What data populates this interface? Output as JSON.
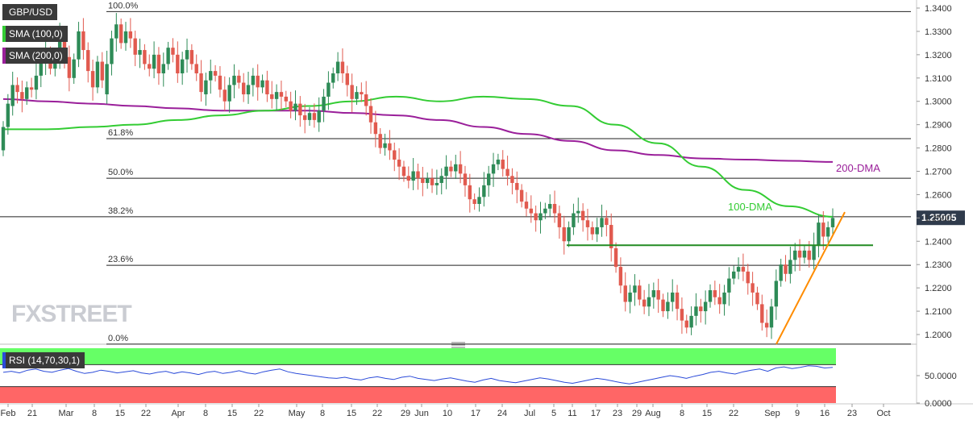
{
  "legend": {
    "symbol": "GBP/USD",
    "sma100": "SMA (100,0)",
    "sma200": "SMA (200,0)",
    "rsi": "RSI (14,70,30,1)"
  },
  "watermark": "FXSTREET",
  "colors": {
    "bull": "#2e8b57",
    "bear": "#e15a4f",
    "sma100": "#33cc33",
    "sma200": "#9a1f9a",
    "trendline": "#ff8c00",
    "support": "#228b22",
    "rsi_line": "#2b4bd9",
    "rsi_overbought_zone": "#66ff66",
    "rsi_oversold_zone": "#ff6666",
    "price_tag": "#2f3b4c"
  },
  "annotations": {
    "dma200": "200-DMA",
    "dma100": "100-DMA"
  },
  "last_price": "1.25005",
  "chart_data": {
    "type": "candlestick",
    "symbol": "GBP/USD",
    "y_ticks": [
      "1.3400",
      "1.3300",
      "1.3200",
      "1.3100",
      "1.3000",
      "1.2900",
      "1.2800",
      "1.2700",
      "1.2600",
      "1.2500",
      "1.2400",
      "1.2300",
      "1.2200",
      "1.2100",
      "1.2000"
    ],
    "ylim": [
      1.1955,
      1.3425
    ],
    "x_ticks": [
      "Feb",
      "21",
      "Mar",
      "8",
      "15",
      "22",
      "Apr",
      "8",
      "15",
      "22",
      "May",
      "8",
      "15",
      "22",
      "29",
      "Jun",
      "10",
      "17",
      "24",
      "Jul",
      "5",
      "11",
      "17",
      "23",
      "29",
      "Aug",
      "8",
      "15",
      "22",
      "Sep",
      "9",
      "16",
      "23",
      "Oct"
    ],
    "fib_levels": [
      {
        "label": "100.0%",
        "value": 1.3385
      },
      {
        "label": "61.8%",
        "value": 1.284
      },
      {
        "label": "50.0%",
        "value": 1.267
      },
      {
        "label": "38.2%",
        "value": 1.2505
      },
      {
        "label": "23.6%",
        "value": 1.2297
      },
      {
        "label": "0.0%",
        "value": 1.1959
      }
    ],
    "support_level": 1.2383,
    "trendline": {
      "from": [
        1.1959,
        "early Sep"
      ],
      "to": [
        1.2525,
        "mid Sep"
      ]
    },
    "sma100": [
      1.288,
      1.288,
      1.289,
      1.29,
      1.292,
      1.294,
      1.296,
      1.298,
      1.3,
      1.302,
      1.3,
      1.302,
      1.301,
      1.298,
      1.29,
      1.282,
      1.272,
      1.262,
      1.255,
      1.2505
    ],
    "sma200": [
      1.301,
      1.3,
      1.299,
      1.298,
      1.297,
      1.296,
      1.296,
      1.296,
      1.295,
      1.294,
      1.292,
      1.289,
      1.286,
      1.283,
      1.279,
      1.277,
      1.2755,
      1.275,
      1.2745,
      1.274
    ],
    "candles": [
      [
        1.279,
        1.289
      ],
      [
        1.289,
        1.299
      ],
      [
        1.298,
        1.307
      ],
      [
        1.307,
        1.304
      ],
      [
        1.304,
        1.301
      ],
      [
        1.301,
        1.306
      ],
      [
        1.306,
        1.305
      ],
      [
        1.305,
        1.311
      ],
      [
        1.311,
        1.317
      ],
      [
        1.317,
        1.321
      ],
      [
        1.321,
        1.314
      ],
      [
        1.314,
        1.318
      ],
      [
        1.318,
        1.328
      ],
      [
        1.327,
        1.319
      ],
      [
        1.319,
        1.31
      ],
      [
        1.31,
        1.318
      ],
      [
        1.318,
        1.33
      ],
      [
        1.33,
        1.322
      ],
      [
        1.322,
        1.313
      ],
      [
        1.313,
        1.306
      ],
      [
        1.306,
        1.317
      ],
      [
        1.317,
        1.309
      ],
      [
        1.303,
        1.316
      ],
      [
        1.316,
        1.327
      ],
      [
        1.327,
        1.333
      ],
      [
        1.333,
        1.325
      ],
      [
        1.325,
        1.33
      ],
      [
        1.33,
        1.327
      ],
      [
        1.327,
        1.32
      ],
      [
        1.32,
        1.322
      ],
      [
        1.322,
        1.316
      ],
      [
        1.316,
        1.314
      ],
      [
        1.314,
        1.32
      ],
      [
        1.32,
        1.312
      ],
      [
        1.312,
        1.316
      ],
      [
        1.316,
        1.323
      ],
      [
        1.323,
        1.32
      ],
      [
        1.32,
        1.312
      ],
      [
        1.312,
        1.318
      ],
      [
        1.318,
        1.322
      ],
      [
        1.322,
        1.316
      ],
      [
        1.316,
        1.312
      ],
      [
        1.312,
        1.304
      ],
      [
        1.303,
        1.309
      ],
      [
        1.309,
        1.313
      ],
      [
        1.313,
        1.311
      ],
      [
        1.311,
        1.305
      ],
      [
        1.305,
        1.3
      ],
      [
        1.3,
        1.307
      ],
      [
        1.307,
        1.311
      ],
      [
        1.311,
        1.308
      ],
      [
        1.308,
        1.303
      ],
      [
        1.303,
        1.307
      ],
      [
        1.307,
        1.311
      ],
      [
        1.311,
        1.306
      ],
      [
        1.306,
        1.309
      ],
      [
        1.309,
        1.303
      ],
      [
        1.303,
        1.301
      ],
      [
        1.301,
        1.304
      ],
      [
        1.304,
        1.302
      ],
      [
        1.302,
        1.3
      ],
      [
        1.3,
        1.296
      ],
      [
        1.296,
        1.299
      ],
      [
        1.299,
        1.294
      ],
      [
        1.294,
        1.292
      ],
      [
        1.292,
        1.295
      ],
      [
        1.295,
        1.292
      ],
      [
        1.291,
        1.296
      ],
      [
        1.296,
        1.302
      ],
      [
        1.302,
        1.308
      ],
      [
        1.308,
        1.312
      ],
      [
        1.312,
        1.317
      ],
      [
        1.317,
        1.312
      ],
      [
        1.312,
        1.307
      ],
      [
        1.307,
        1.301
      ],
      [
        1.301,
        1.304
      ],
      [
        1.304,
        1.303
      ],
      [
        1.303,
        1.298
      ],
      [
        1.298,
        1.291
      ],
      [
        1.291,
        1.286
      ],
      [
        1.286,
        1.28
      ],
      [
        1.28,
        1.282
      ],
      [
        1.282,
        1.279
      ],
      [
        1.279,
        1.275
      ],
      [
        1.275,
        1.272
      ],
      [
        1.272,
        1.268
      ],
      [
        1.268,
        1.266
      ],
      [
        1.266,
        1.27
      ],
      [
        1.27,
        1.267
      ],
      [
        1.267,
        1.265
      ],
      [
        1.265,
        1.267
      ],
      [
        1.267,
        1.264
      ],
      [
        1.264,
        1.265
      ],
      [
        1.265,
        1.268
      ],
      [
        1.268,
        1.272
      ],
      [
        1.272,
        1.27
      ],
      [
        1.27,
        1.273
      ],
      [
        1.273,
        1.269
      ],
      [
        1.269,
        1.264
      ],
      [
        1.264,
        1.258
      ],
      [
        1.258,
        1.256
      ],
      [
        1.256,
        1.259
      ],
      [
        1.259,
        1.264
      ],
      [
        1.264,
        1.269
      ],
      [
        1.269,
        1.273
      ],
      [
        1.273,
        1.275
      ],
      [
        1.275,
        1.271
      ],
      [
        1.271,
        1.268
      ],
      [
        1.268,
        1.265
      ],
      [
        1.265,
        1.262
      ],
      [
        1.262,
        1.257
      ],
      [
        1.257,
        1.254
      ],
      [
        1.254,
        1.252
      ],
      [
        1.252,
        1.249
      ],
      [
        1.249,
        1.252
      ],
      [
        1.252,
        1.254
      ],
      [
        1.254,
        1.256
      ],
      [
        1.256,
        1.252
      ],
      [
        1.252,
        1.246
      ],
      [
        1.246,
        1.24
      ],
      [
        1.24,
        1.246
      ],
      [
        1.246,
        1.252
      ],
      [
        1.252,
        1.253
      ],
      [
        1.253,
        1.249
      ],
      [
        1.249,
        1.246
      ],
      [
        1.246,
        1.243
      ],
      [
        1.243,
        1.246
      ],
      [
        1.246,
        1.25
      ],
      [
        1.25,
        1.247
      ],
      [
        1.247,
        1.237
      ],
      [
        1.237,
        1.229
      ],
      [
        1.229,
        1.221
      ],
      [
        1.221,
        1.214
      ],
      [
        1.214,
        1.218
      ],
      [
        1.218,
        1.221
      ],
      [
        1.221,
        1.215
      ],
      [
        1.215,
        1.212
      ],
      [
        1.212,
        1.216
      ],
      [
        1.216,
        1.219
      ],
      [
        1.219,
        1.215
      ],
      [
        1.215,
        1.21
      ],
      [
        1.21,
        1.214
      ],
      [
        1.214,
        1.218
      ],
      [
        1.218,
        1.211
      ],
      [
        1.211,
        1.206
      ],
      [
        1.206,
        1.203
      ],
      [
        1.203,
        1.208
      ],
      [
        1.208,
        1.212
      ],
      [
        1.212,
        1.21
      ],
      [
        1.21,
        1.214
      ],
      [
        1.214,
        1.219
      ],
      [
        1.219,
        1.216
      ],
      [
        1.216,
        1.213
      ],
      [
        1.213,
        1.218
      ],
      [
        1.218,
        1.224
      ],
      [
        1.224,
        1.227
      ],
      [
        1.227,
        1.229
      ],
      [
        1.229,
        1.227
      ],
      [
        1.227,
        1.222
      ],
      [
        1.222,
        1.218
      ],
      [
        1.218,
        1.213
      ],
      [
        1.213,
        1.205
      ],
      [
        1.205,
        1.203
      ],
      [
        1.203,
        1.212
      ],
      [
        1.212,
        1.223
      ],
      [
        1.223,
        1.23
      ],
      [
        1.23,
        1.226
      ],
      [
        1.226,
        1.232
      ],
      [
        1.232,
        1.236
      ],
      [
        1.236,
        1.233
      ],
      [
        1.233,
        1.236
      ],
      [
        1.236,
        1.232
      ],
      [
        1.232,
        1.238
      ],
      [
        1.238,
        1.248
      ],
      [
        1.248,
        1.242
      ],
      [
        1.242,
        1.246
      ],
      [
        1.246,
        1.25
      ]
    ],
    "rsi": {
      "yticks": [
        "50.0000",
        "0.0000"
      ],
      "ylim": [
        0,
        100
      ],
      "levels": [
        70,
        30
      ],
      "values": [
        56,
        58,
        55,
        60,
        62,
        58,
        56,
        60,
        63,
        58,
        54,
        56,
        60,
        58,
        55,
        57,
        59,
        55,
        53,
        56,
        58,
        54,
        57,
        55,
        52,
        56,
        58,
        54,
        56,
        59,
        55,
        53,
        57,
        60,
        62,
        57,
        54,
        52,
        50,
        48,
        46,
        45,
        47,
        44,
        42,
        46,
        48,
        45,
        43,
        47,
        49,
        45,
        43,
        41,
        44,
        46,
        43,
        40,
        38,
        42,
        45,
        41,
        39,
        37,
        40,
        43,
        46,
        44,
        41,
        38,
        36,
        39,
        42,
        45,
        43,
        40,
        37,
        35,
        38,
        41,
        44,
        47,
        50,
        48,
        45,
        49,
        52,
        56,
        58,
        55,
        53,
        57,
        60,
        62,
        58,
        64,
        66,
        63,
        65,
        68,
        67,
        64,
        65
      ]
    }
  }
}
